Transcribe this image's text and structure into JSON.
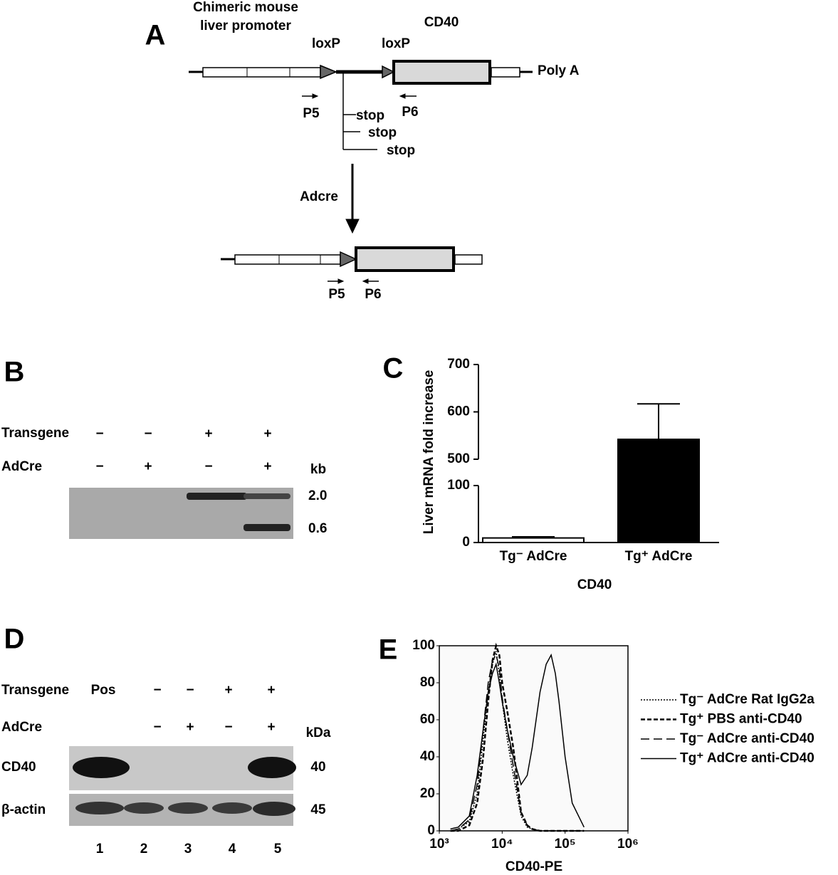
{
  "panel_labels": [
    "A",
    "B",
    "C",
    "D",
    "E"
  ],
  "construct": {
    "promoter_label": [
      "Chimeric mouse",
      "liver promoter"
    ],
    "loxp_labels": [
      "loxP",
      "loxP"
    ],
    "gene_label": "CD40",
    "polya_label": "Poly A",
    "stops": [
      "stop",
      "stop",
      "stop"
    ],
    "primers_top": [
      "P5",
      "P6"
    ],
    "step_label": "Adcre",
    "primers_bottom": [
      "P5",
      "P6"
    ]
  },
  "gel_b": {
    "row_labels": [
      "Transgene",
      "AdCre"
    ],
    "rows": [
      [
        "−",
        "−",
        "+",
        "+"
      ],
      [
        "−",
        "+",
        "−",
        "+"
      ]
    ],
    "unit": "kb",
    "sizes": [
      "2.0",
      "0.6"
    ]
  },
  "chart_data": [
    {
      "type": "bar",
      "ylabel": "Liver mRNA fold increase",
      "xlabel": "CD40",
      "categories": [
        "Tg⁻ AdCre",
        "Tg⁺ AdCre"
      ],
      "values": [
        8,
        542
      ],
      "errors": [
        2,
        75
      ],
      "colors": [
        "#ffffff",
        "#000000"
      ],
      "ylim": [
        0,
        700
      ],
      "ybreak": [
        100,
        500
      ],
      "yticks": [
        0,
        100,
        500,
        600,
        700
      ]
    },
    {
      "type": "line",
      "xlabel": "CD40-PE",
      "xlog": true,
      "x": [
        1500,
        2000,
        3000,
        4000,
        5000,
        6000,
        7000,
        8000,
        9000,
        10000,
        12000,
        15000,
        20000,
        25000,
        30000,
        40000,
        50000,
        60000,
        70000,
        80000,
        100000,
        130000,
        200000
      ],
      "xlim": [
        1000,
        1000000
      ],
      "xticks": [
        {
          "value": 1000,
          "label": "10³"
        },
        {
          "value": 10000,
          "label": "10⁴"
        },
        {
          "value": 100000,
          "label": "10⁵"
        },
        {
          "value": 1000000,
          "label": "10⁶"
        }
      ],
      "ylim": [
        0,
        100
      ],
      "yticks": [
        0,
        20,
        40,
        60,
        80,
        100
      ],
      "series": [
        {
          "name": "Tg⁻ AdCre Rat IgG2a",
          "color": "#000000",
          "dash": "2,2",
          "values": [
            0,
            1,
            5,
            20,
            50,
            75,
            90,
            97,
            85,
            70,
            50,
            30,
            8,
            2,
            1,
            0,
            0,
            0,
            0,
            0,
            0,
            0,
            0
          ]
        },
        {
          "name": "Tg⁺ PBS anti-CD40",
          "color": "#000000",
          "dash": "6,3",
          "values": [
            0,
            0,
            3,
            15,
            40,
            70,
            92,
            100,
            95,
            80,
            65,
            45,
            10,
            3,
            1,
            0,
            0,
            0,
            0,
            0,
            0,
            0,
            0
          ]
        },
        {
          "name": "Tg⁻ AdCre anti-CD40",
          "color": "#000000",
          "dash": "12,6",
          "values": [
            0,
            1,
            6,
            25,
            55,
            80,
            92,
            95,
            88,
            72,
            55,
            35,
            10,
            3,
            1,
            0,
            0,
            0,
            0,
            0,
            0,
            0,
            0
          ]
        },
        {
          "name": "Tg⁺ AdCre anti-CD40",
          "color": "#000000",
          "dash": "none",
          "values": [
            1,
            2,
            8,
            30,
            55,
            75,
            85,
            90,
            80,
            70,
            55,
            40,
            25,
            30,
            45,
            75,
            90,
            95,
            85,
            70,
            40,
            15,
            2
          ]
        }
      ]
    }
  ],
  "gel_d": {
    "row_labels": [
      "Transgene",
      "AdCre"
    ],
    "rows": [
      [
        "Pos",
        "−",
        "−",
        "+",
        "+"
      ],
      [
        null,
        "−",
        "+",
        "−",
        "+"
      ]
    ],
    "unit": "kDa",
    "blots": [
      "CD40",
      "β-actin"
    ],
    "sizes": [
      "40",
      "45"
    ],
    "lanes": [
      "1",
      "2",
      "3",
      "4",
      "5"
    ]
  }
}
